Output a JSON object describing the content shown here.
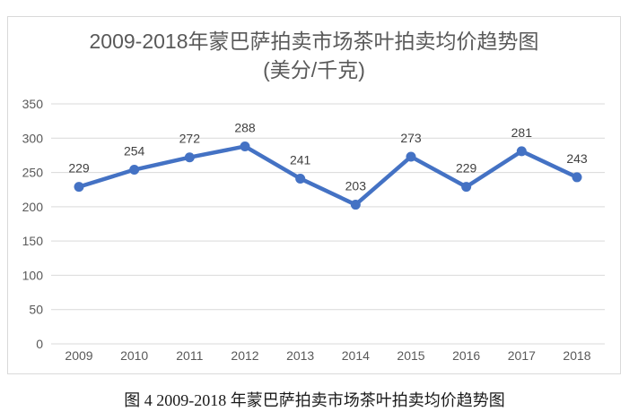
{
  "chart_data": {
    "type": "line",
    "title": "2009-2018年蒙巴萨拍卖市场茶叶拍卖均价趋势图",
    "subtitle": "(美分/千克)",
    "categories": [
      "2009",
      "2010",
      "2011",
      "2012",
      "2013",
      "2014",
      "2015",
      "2016",
      "2017",
      "2018"
    ],
    "values": [
      229,
      254,
      272,
      288,
      241,
      203,
      273,
      229,
      281,
      243
    ],
    "data_labels_shown": true,
    "ylim": [
      0,
      350
    ],
    "yticks": [
      0,
      50,
      100,
      150,
      200,
      250,
      300,
      350
    ],
    "grid": "horizontal",
    "legend": "none",
    "marker": "circle",
    "line_color": "#4472C4"
  },
  "caption": "图 4  2009-2018 年蒙巴萨拍卖市场茶叶拍卖均价趋势图",
  "colors": {
    "grid_line": "#d9d9d9",
    "frame_border": "#d9d9d9",
    "axis_text": "#595959",
    "title_text": "#595959",
    "data_label_text": "#404040",
    "caption_text": "#1a1a1a",
    "series_line": "#4472C4"
  }
}
